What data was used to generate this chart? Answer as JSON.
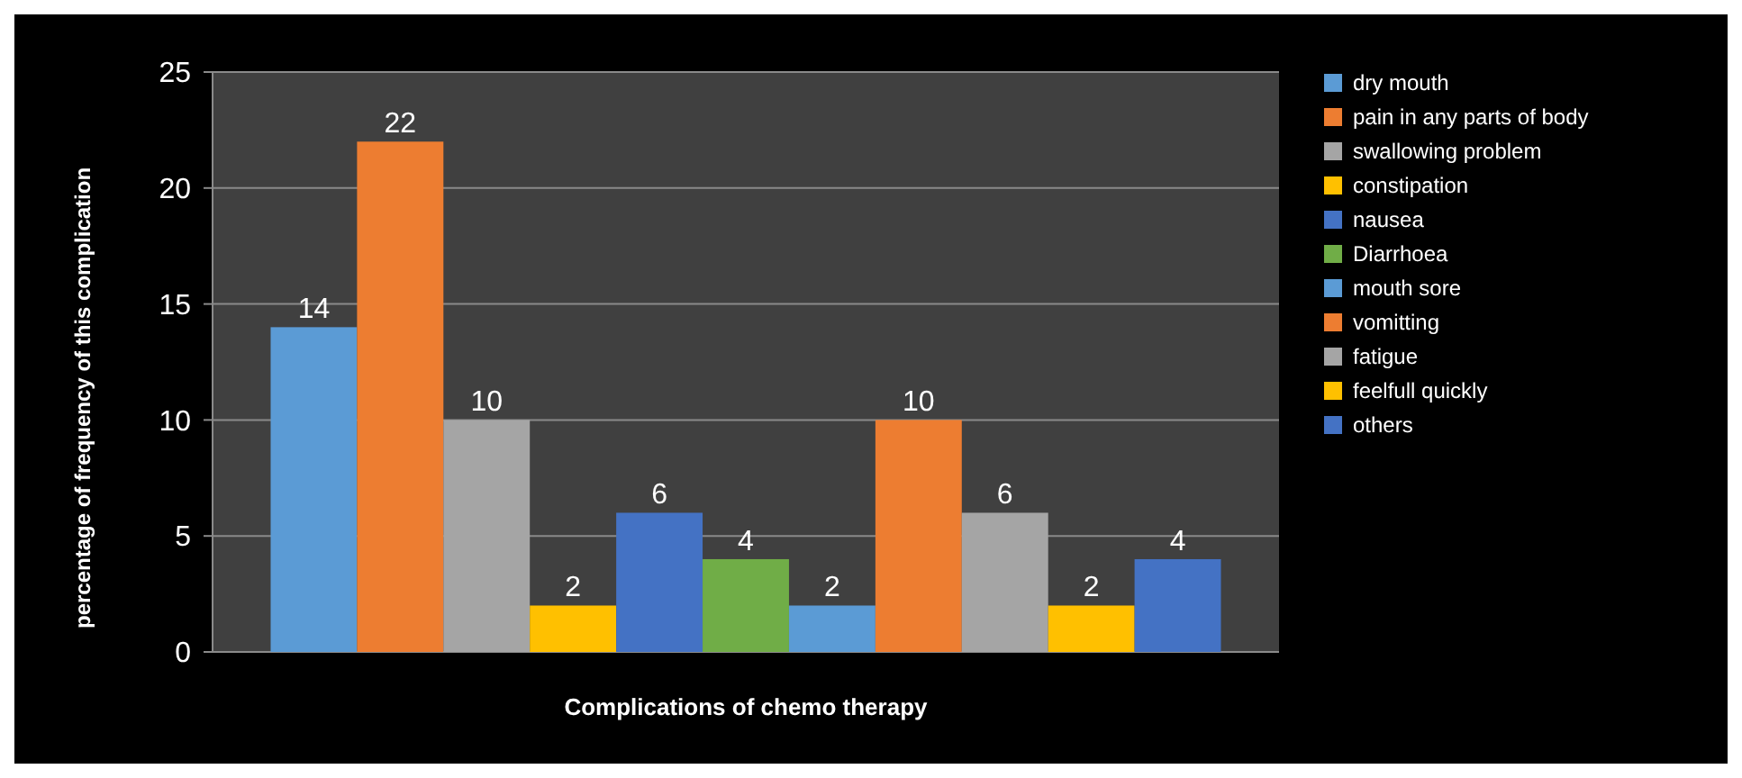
{
  "chart_data": {
    "type": "bar",
    "xlabel": "Complications of chemo therapy",
    "ylabel": "percentage of frequency  of this complication",
    "categories": [
      null
    ],
    "series": [
      {
        "name": "dry mouth",
        "color": "#5b9bd5",
        "values": [
          14
        ]
      },
      {
        "name": "pain in any parts of body",
        "color": "#ed7d31",
        "values": [
          22
        ]
      },
      {
        "name": "swallowing problem",
        "color": "#a5a5a5",
        "values": [
          10
        ]
      },
      {
        "name": "constipation",
        "color": "#ffc000",
        "values": [
          2
        ]
      },
      {
        "name": "nausea",
        "color": "#4472c4",
        "values": [
          6
        ]
      },
      {
        "name": "Diarrhoea",
        "color": "#70ad47",
        "values": [
          4
        ]
      },
      {
        "name": "mouth sore",
        "color": "#5b9bd5",
        "values": [
          2
        ]
      },
      {
        "name": "vomitting",
        "color": "#ed7d31",
        "values": [
          10
        ]
      },
      {
        "name": "fatigue",
        "color": "#a5a5a5",
        "values": [
          6
        ]
      },
      {
        "name": "feelfull quickly",
        "color": "#ffc000",
        "values": [
          2
        ]
      },
      {
        "name": "others",
        "color": "#4472c4",
        "values": [
          4
        ]
      }
    ],
    "ylim": [
      0,
      25
    ],
    "yticks": [
      0,
      5,
      10,
      15,
      20,
      25
    ],
    "grid": "y",
    "legend": "right",
    "data_labels": true
  }
}
